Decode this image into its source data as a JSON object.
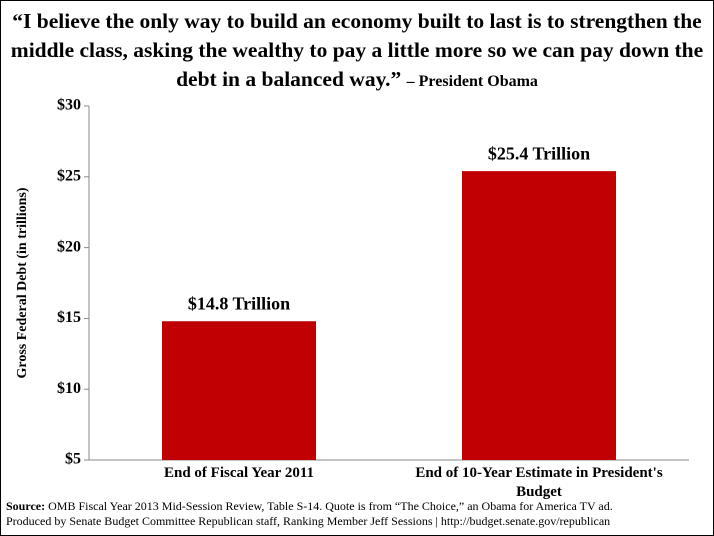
{
  "chart_data": {
    "type": "bar",
    "title": "“I believe the only way to build an economy built to last is to strengthen the middle class, asking the wealthy to pay a little more so we can pay down the debt in a balanced way.”",
    "title_attribution": "– President Obama",
    "ylabel": "Gross Federal Debt (in trillions)",
    "categories": [
      "End of Fiscal Year 2011",
      "End of 10-Year Estimate in President's Budget"
    ],
    "values": [
      14.8,
      25.4
    ],
    "value_labels": [
      "$14.8 Trillion",
      "$25.4 Trillion"
    ],
    "color": "#c00000",
    "ylim": [
      5,
      30
    ],
    "yticks": [
      {
        "value": 5,
        "label": "$5"
      },
      {
        "value": 10,
        "label": "$10"
      },
      {
        "value": 15,
        "label": "$15"
      },
      {
        "value": 20,
        "label": "$20"
      },
      {
        "value": 25,
        "label": "$25"
      },
      {
        "value": 30,
        "label": "$30"
      }
    ],
    "grid": false,
    "source_label": "Source:",
    "source": "OMB Fiscal Year 2013 Mid-Session Review, Table S-14. Quote is from “The Choice,” an Obama for America TV ad.",
    "credit": "Produced by Senate Budget Committee Republican staff, Ranking Member Jeff Sessions | http://budget.senate.gov/republican"
  }
}
